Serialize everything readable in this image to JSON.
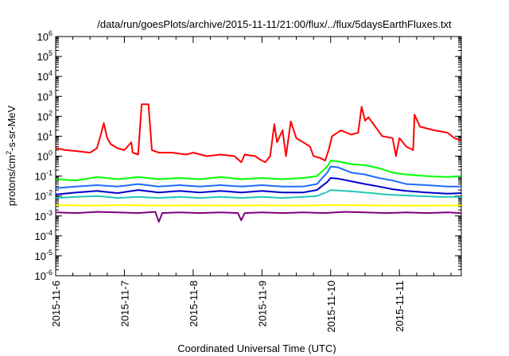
{
  "chart_data": {
    "type": "line",
    "title": "/data/run/goesPlots/archive/2015-11-11/21:00/flux/../flux/5daysEarthFluxes.txt",
    "xlabel": "Coordinated Universal Time (UTC)",
    "ylabel_base": "protons/cm",
    "ylabel_sup": "2",
    "ylabel_rest": "-s-sr-MeV",
    "yscale": "log",
    "ylim_exp": [
      -6,
      6
    ],
    "ytick_base": "10",
    "ytick_exponents": [
      "-6",
      "-5",
      "-4",
      "-3",
      "-2",
      "-1",
      "0",
      "1",
      "2",
      "3",
      "4",
      "5",
      "6"
    ],
    "xlim_days": [
      0,
      5.9
    ],
    "xtick_labels": [
      "2015-11-6",
      "2015-11-7",
      "2015-11-8",
      "2015-11-9",
      "2015-11-10",
      "2015-11-11"
    ],
    "grid": false,
    "legend": "none",
    "series": [
      {
        "color": "#ff0000",
        "points": [
          [
            0,
            2.5
          ],
          [
            0.15,
            2.0
          ],
          [
            0.3,
            1.8
          ],
          [
            0.5,
            1.5
          ],
          [
            0.6,
            2.5
          ],
          [
            0.65,
            10
          ],
          [
            0.7,
            45
          ],
          [
            0.75,
            8
          ],
          [
            0.8,
            4
          ],
          [
            0.9,
            2.5
          ],
          [
            1.0,
            2.0
          ],
          [
            1.1,
            5
          ],
          [
            1.12,
            1.5
          ],
          [
            1.2,
            1.2
          ],
          [
            1.25,
            400
          ],
          [
            1.35,
            400
          ],
          [
            1.4,
            2
          ],
          [
            1.5,
            1.5
          ],
          [
            1.7,
            1.5
          ],
          [
            1.9,
            1.2
          ],
          [
            2.0,
            1.5
          ],
          [
            2.2,
            1.0
          ],
          [
            2.4,
            1.2
          ],
          [
            2.6,
            1.0
          ],
          [
            2.7,
            0.5
          ],
          [
            2.75,
            1.2
          ],
          [
            2.9,
            1.0
          ],
          [
            3.0,
            0.6
          ],
          [
            3.05,
            0.5
          ],
          [
            3.12,
            1.0
          ],
          [
            3.18,
            40
          ],
          [
            3.22,
            5
          ],
          [
            3.3,
            20
          ],
          [
            3.35,
            1
          ],
          [
            3.42,
            55
          ],
          [
            3.5,
            8
          ],
          [
            3.6,
            5
          ],
          [
            3.7,
            3
          ],
          [
            3.75,
            1.0
          ],
          [
            3.85,
            0.8
          ],
          [
            3.92,
            0.6
          ],
          [
            3.97,
            2
          ],
          [
            4.02,
            10
          ],
          [
            4.15,
            20
          ],
          [
            4.3,
            12
          ],
          [
            4.4,
            15
          ],
          [
            4.45,
            300
          ],
          [
            4.5,
            60
          ],
          [
            4.55,
            90
          ],
          [
            4.65,
            30
          ],
          [
            4.75,
            10
          ],
          [
            4.9,
            8
          ],
          [
            4.95,
            1.0
          ],
          [
            5.0,
            8
          ],
          [
            5.1,
            3
          ],
          [
            5.2,
            2
          ],
          [
            5.22,
            120
          ],
          [
            5.3,
            30
          ],
          [
            5.5,
            20
          ],
          [
            5.7,
            15
          ],
          [
            5.8,
            8
          ],
          [
            5.9,
            6
          ]
        ]
      },
      {
        "color": "#00ff00",
        "points": [
          [
            0,
            0.07
          ],
          [
            0.3,
            0.06
          ],
          [
            0.6,
            0.09
          ],
          [
            0.9,
            0.07
          ],
          [
            1.2,
            0.09
          ],
          [
            1.5,
            0.07
          ],
          [
            1.8,
            0.08
          ],
          [
            2.1,
            0.07
          ],
          [
            2.4,
            0.09
          ],
          [
            2.7,
            0.07
          ],
          [
            3.0,
            0.08
          ],
          [
            3.3,
            0.07
          ],
          [
            3.6,
            0.08
          ],
          [
            3.8,
            0.1
          ],
          [
            3.95,
            0.3
          ],
          [
            4.0,
            0.6
          ],
          [
            4.1,
            0.55
          ],
          [
            4.3,
            0.4
          ],
          [
            4.5,
            0.35
          ],
          [
            4.7,
            0.25
          ],
          [
            4.9,
            0.15
          ],
          [
            5.1,
            0.12
          ],
          [
            5.4,
            0.1
          ],
          [
            5.7,
            0.09
          ],
          [
            5.9,
            0.1
          ]
        ]
      },
      {
        "color": "#1e6cff",
        "points": [
          [
            0,
            0.025
          ],
          [
            0.3,
            0.03
          ],
          [
            0.6,
            0.035
          ],
          [
            0.9,
            0.03
          ],
          [
            1.2,
            0.04
          ],
          [
            1.5,
            0.03
          ],
          [
            1.8,
            0.035
          ],
          [
            2.1,
            0.03
          ],
          [
            2.4,
            0.035
          ],
          [
            2.7,
            0.03
          ],
          [
            3.0,
            0.035
          ],
          [
            3.3,
            0.03
          ],
          [
            3.6,
            0.03
          ],
          [
            3.8,
            0.04
          ],
          [
            3.95,
            0.15
          ],
          [
            4.0,
            0.3
          ],
          [
            4.1,
            0.28
          ],
          [
            4.3,
            0.15
          ],
          [
            4.5,
            0.12
          ],
          [
            4.7,
            0.08
          ],
          [
            4.9,
            0.06
          ],
          [
            5.1,
            0.04
          ],
          [
            5.4,
            0.035
          ],
          [
            5.7,
            0.03
          ],
          [
            5.9,
            0.03
          ]
        ]
      },
      {
        "color": "#0000cc",
        "points": [
          [
            0,
            0.012
          ],
          [
            0.3,
            0.015
          ],
          [
            0.6,
            0.018
          ],
          [
            0.9,
            0.014
          ],
          [
            1.2,
            0.02
          ],
          [
            1.5,
            0.015
          ],
          [
            1.8,
            0.018
          ],
          [
            2.1,
            0.015
          ],
          [
            2.4,
            0.018
          ],
          [
            2.7,
            0.015
          ],
          [
            3.0,
            0.018
          ],
          [
            3.3,
            0.015
          ],
          [
            3.6,
            0.015
          ],
          [
            3.8,
            0.02
          ],
          [
            3.95,
            0.05
          ],
          [
            4.0,
            0.08
          ],
          [
            4.1,
            0.075
          ],
          [
            4.3,
            0.055
          ],
          [
            4.5,
            0.04
          ],
          [
            4.7,
            0.03
          ],
          [
            4.9,
            0.022
          ],
          [
            5.1,
            0.018
          ],
          [
            5.4,
            0.015
          ],
          [
            5.7,
            0.013
          ],
          [
            5.9,
            0.014
          ]
        ]
      },
      {
        "color": "#20c8b4",
        "points": [
          [
            0,
            0.008
          ],
          [
            0.3,
            0.009
          ],
          [
            0.6,
            0.01
          ],
          [
            0.9,
            0.008
          ],
          [
            1.2,
            0.009
          ],
          [
            1.5,
            0.008
          ],
          [
            1.8,
            0.009
          ],
          [
            2.1,
            0.008
          ],
          [
            2.4,
            0.009
          ],
          [
            2.7,
            0.008
          ],
          [
            3.0,
            0.009
          ],
          [
            3.3,
            0.008
          ],
          [
            3.6,
            0.009
          ],
          [
            3.8,
            0.01
          ],
          [
            3.95,
            0.016
          ],
          [
            4.0,
            0.02
          ],
          [
            4.2,
            0.018
          ],
          [
            4.4,
            0.016
          ],
          [
            4.6,
            0.014
          ],
          [
            4.8,
            0.012
          ],
          [
            5.0,
            0.011
          ],
          [
            5.3,
            0.01
          ],
          [
            5.6,
            0.009
          ],
          [
            5.9,
            0.009
          ]
        ]
      },
      {
        "color": "#ffff00",
        "points": [
          [
            0,
            0.0035
          ],
          [
            0.5,
            0.0033
          ],
          [
            1.0,
            0.0035
          ],
          [
            1.5,
            0.0033
          ],
          [
            2.0,
            0.0034
          ],
          [
            2.5,
            0.0033
          ],
          [
            3.0,
            0.0034
          ],
          [
            3.5,
            0.0033
          ],
          [
            4.0,
            0.0035
          ],
          [
            4.5,
            0.0034
          ],
          [
            5.0,
            0.0033
          ],
          [
            5.5,
            0.0033
          ],
          [
            5.9,
            0.0034
          ]
        ]
      },
      {
        "color": "#800080",
        "points": [
          [
            0,
            0.0015
          ],
          [
            0.3,
            0.0014
          ],
          [
            0.6,
            0.0016
          ],
          [
            0.9,
            0.0015
          ],
          [
            1.2,
            0.0014
          ],
          [
            1.45,
            0.0016
          ],
          [
            1.5,
            0.0005
          ],
          [
            1.55,
            0.0014
          ],
          [
            1.8,
            0.0015
          ],
          [
            2.1,
            0.0014
          ],
          [
            2.4,
            0.0015
          ],
          [
            2.65,
            0.0014
          ],
          [
            2.7,
            0.0006
          ],
          [
            2.75,
            0.0014
          ],
          [
            3.0,
            0.0015
          ],
          [
            3.3,
            0.0014
          ],
          [
            3.6,
            0.0015
          ],
          [
            3.9,
            0.0014
          ],
          [
            4.2,
            0.0016
          ],
          [
            4.5,
            0.0015
          ],
          [
            4.8,
            0.0014
          ],
          [
            5.1,
            0.0015
          ],
          [
            5.4,
            0.0014
          ],
          [
            5.7,
            0.0015
          ],
          [
            5.9,
            0.0014
          ]
        ]
      }
    ]
  }
}
